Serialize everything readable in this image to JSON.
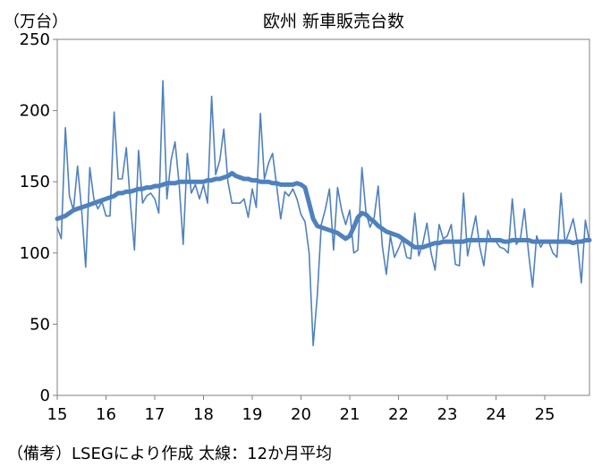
{
  "chart_data": {
    "type": "line",
    "title": "欧州 新車販売台数",
    "y_unit_label": "（万台）",
    "footnote": "（備考）LSEGにより作成 太線：12か月平均",
    "ylim": [
      0,
      250
    ],
    "y_ticks": [
      0,
      50,
      100,
      150,
      200,
      250
    ],
    "x_ticks": [
      "15",
      "16",
      "17",
      "18",
      "19",
      "20",
      "21",
      "22",
      "23",
      "24",
      "25"
    ],
    "xlim": [
      2015.0,
      2025.917
    ],
    "grid": false,
    "legend": "none",
    "series": [
      {
        "style": "thin",
        "color": "#4F81BD",
        "points": [
          [
            2015.0,
            118
          ],
          [
            2015.083,
            110
          ],
          [
            2015.167,
            188
          ],
          [
            2015.25,
            140
          ],
          [
            2015.333,
            130
          ],
          [
            2015.417,
            161
          ],
          [
            2015.5,
            130
          ],
          [
            2015.583,
            90
          ],
          [
            2015.667,
            160
          ],
          [
            2015.75,
            138
          ],
          [
            2015.833,
            131
          ],
          [
            2015.917,
            136
          ],
          [
            2016.0,
            126
          ],
          [
            2016.083,
            126
          ],
          [
            2016.167,
            199
          ],
          [
            2016.25,
            152
          ],
          [
            2016.333,
            152
          ],
          [
            2016.417,
            174
          ],
          [
            2016.5,
            135
          ],
          [
            2016.583,
            102
          ],
          [
            2016.667,
            172
          ],
          [
            2016.75,
            135
          ],
          [
            2016.833,
            140
          ],
          [
            2016.917,
            142
          ],
          [
            2017.0,
            138
          ],
          [
            2017.083,
            128
          ],
          [
            2017.167,
            221
          ],
          [
            2017.25,
            138
          ],
          [
            2017.333,
            165
          ],
          [
            2017.417,
            178
          ],
          [
            2017.5,
            148
          ],
          [
            2017.583,
            106
          ],
          [
            2017.667,
            170
          ],
          [
            2017.75,
            142
          ],
          [
            2017.833,
            148
          ],
          [
            2017.917,
            138
          ],
          [
            2018.0,
            148
          ],
          [
            2018.083,
            135
          ],
          [
            2018.167,
            210
          ],
          [
            2018.25,
            155
          ],
          [
            2018.333,
            165
          ],
          [
            2018.417,
            187
          ],
          [
            2018.5,
            150
          ],
          [
            2018.583,
            135
          ],
          [
            2018.667,
            135
          ],
          [
            2018.75,
            135
          ],
          [
            2018.833,
            138
          ],
          [
            2018.917,
            125
          ],
          [
            2019.0,
            145
          ],
          [
            2019.083,
            132
          ],
          [
            2019.167,
            198
          ],
          [
            2019.25,
            152
          ],
          [
            2019.333,
            163
          ],
          [
            2019.417,
            170
          ],
          [
            2019.5,
            147
          ],
          [
            2019.583,
            124
          ],
          [
            2019.667,
            143
          ],
          [
            2019.75,
            140
          ],
          [
            2019.833,
            145
          ],
          [
            2019.917,
            138
          ],
          [
            2020.0,
            127
          ],
          [
            2020.083,
            122
          ],
          [
            2020.167,
            100
          ],
          [
            2020.25,
            35
          ],
          [
            2020.333,
            70
          ],
          [
            2020.417,
            120
          ],
          [
            2020.5,
            131
          ],
          [
            2020.583,
            145
          ],
          [
            2020.667,
            102
          ],
          [
            2020.75,
            146
          ],
          [
            2020.833,
            130
          ],
          [
            2020.917,
            120
          ],
          [
            2021.0,
            130
          ],
          [
            2021.083,
            100
          ],
          [
            2021.167,
            102
          ],
          [
            2021.25,
            160
          ],
          [
            2021.333,
            128
          ],
          [
            2021.417,
            118
          ],
          [
            2021.5,
            125
          ],
          [
            2021.583,
            147
          ],
          [
            2021.667,
            105
          ],
          [
            2021.75,
            85
          ],
          [
            2021.833,
            112
          ],
          [
            2021.917,
            97
          ],
          [
            2022.0,
            103
          ],
          [
            2022.083,
            110
          ],
          [
            2022.167,
            97
          ],
          [
            2022.25,
            96
          ],
          [
            2022.333,
            128
          ],
          [
            2022.417,
            98
          ],
          [
            2022.5,
            107
          ],
          [
            2022.583,
            121
          ],
          [
            2022.667,
            100
          ],
          [
            2022.75,
            88
          ],
          [
            2022.833,
            120
          ],
          [
            2022.917,
            110
          ],
          [
            2023.0,
            112
          ],
          [
            2023.083,
            120
          ],
          [
            2023.167,
            92
          ],
          [
            2023.25,
            91
          ],
          [
            2023.333,
            142
          ],
          [
            2023.417,
            98
          ],
          [
            2023.5,
            112
          ],
          [
            2023.583,
            126
          ],
          [
            2023.667,
            104
          ],
          [
            2023.75,
            91
          ],
          [
            2023.833,
            116
          ],
          [
            2023.917,
            108
          ],
          [
            2024.0,
            108
          ],
          [
            2024.083,
            104
          ],
          [
            2024.167,
            103
          ],
          [
            2024.25,
            100
          ],
          [
            2024.333,
            138
          ],
          [
            2024.417,
            106
          ],
          [
            2024.5,
            110
          ],
          [
            2024.583,
            131
          ],
          [
            2024.667,
            100
          ],
          [
            2024.75,
            76
          ],
          [
            2024.833,
            112
          ],
          [
            2024.917,
            104
          ],
          [
            2025.0,
            109
          ],
          [
            2025.083,
            108
          ],
          [
            2025.167,
            100
          ],
          [
            2025.25,
            97
          ],
          [
            2025.333,
            142
          ],
          [
            2025.417,
            107
          ],
          [
            2025.5,
            115
          ],
          [
            2025.583,
            124
          ],
          [
            2025.667,
            108
          ],
          [
            2025.75,
            79
          ],
          [
            2025.833,
            123
          ],
          [
            2025.917,
            108
          ]
        ]
      },
      {
        "style": "thick",
        "color": "#4F81BD",
        "points": [
          [
            2015.0,
            124
          ],
          [
            2015.083,
            125
          ],
          [
            2015.167,
            126
          ],
          [
            2015.25,
            128
          ],
          [
            2015.333,
            130
          ],
          [
            2015.417,
            131
          ],
          [
            2015.5,
            132
          ],
          [
            2015.583,
            133
          ],
          [
            2015.667,
            134
          ],
          [
            2015.75,
            135
          ],
          [
            2015.833,
            136
          ],
          [
            2015.917,
            137
          ],
          [
            2016.0,
            138
          ],
          [
            2016.083,
            139
          ],
          [
            2016.167,
            140
          ],
          [
            2016.25,
            142
          ],
          [
            2016.333,
            142
          ],
          [
            2016.417,
            143
          ],
          [
            2016.5,
            143
          ],
          [
            2016.583,
            144
          ],
          [
            2016.667,
            145
          ],
          [
            2016.75,
            145
          ],
          [
            2016.833,
            146
          ],
          [
            2016.917,
            146
          ],
          [
            2017.0,
            147
          ],
          [
            2017.083,
            147
          ],
          [
            2017.167,
            148
          ],
          [
            2017.25,
            149
          ],
          [
            2017.333,
            149
          ],
          [
            2017.417,
            149
          ],
          [
            2017.5,
            150
          ],
          [
            2017.583,
            150
          ],
          [
            2017.667,
            150
          ],
          [
            2017.75,
            150
          ],
          [
            2017.833,
            150
          ],
          [
            2017.917,
            150
          ],
          [
            2018.0,
            150
          ],
          [
            2018.083,
            151
          ],
          [
            2018.167,
            151
          ],
          [
            2018.25,
            152
          ],
          [
            2018.333,
            152
          ],
          [
            2018.417,
            153
          ],
          [
            2018.5,
            154
          ],
          [
            2018.583,
            156
          ],
          [
            2018.667,
            154
          ],
          [
            2018.75,
            153
          ],
          [
            2018.833,
            152
          ],
          [
            2018.917,
            152
          ],
          [
            2019.0,
            151
          ],
          [
            2019.083,
            151
          ],
          [
            2019.167,
            150
          ],
          [
            2019.25,
            150
          ],
          [
            2019.333,
            150
          ],
          [
            2019.417,
            149
          ],
          [
            2019.5,
            149
          ],
          [
            2019.583,
            148
          ],
          [
            2019.667,
            148
          ],
          [
            2019.75,
            148
          ],
          [
            2019.833,
            148
          ],
          [
            2019.917,
            149
          ],
          [
            2020.0,
            148
          ],
          [
            2020.083,
            146
          ],
          [
            2020.167,
            135
          ],
          [
            2020.25,
            124
          ],
          [
            2020.333,
            119
          ],
          [
            2020.417,
            118
          ],
          [
            2020.5,
            117
          ],
          [
            2020.583,
            116
          ],
          [
            2020.667,
            115
          ],
          [
            2020.75,
            114
          ],
          [
            2020.833,
            112
          ],
          [
            2020.917,
            110
          ],
          [
            2021.0,
            112
          ],
          [
            2021.083,
            118
          ],
          [
            2021.167,
            125
          ],
          [
            2021.25,
            128
          ],
          [
            2021.333,
            127
          ],
          [
            2021.417,
            124
          ],
          [
            2021.5,
            122
          ],
          [
            2021.583,
            119
          ],
          [
            2021.667,
            117
          ],
          [
            2021.75,
            115
          ],
          [
            2021.833,
            114
          ],
          [
            2021.917,
            113
          ],
          [
            2022.0,
            112
          ],
          [
            2022.083,
            110
          ],
          [
            2022.167,
            108
          ],
          [
            2022.25,
            106
          ],
          [
            2022.333,
            104
          ],
          [
            2022.417,
            104
          ],
          [
            2022.5,
            104
          ],
          [
            2022.583,
            105
          ],
          [
            2022.667,
            106
          ],
          [
            2022.75,
            107
          ],
          [
            2022.833,
            107
          ],
          [
            2022.917,
            108
          ],
          [
            2023.0,
            108
          ],
          [
            2023.083,
            108
          ],
          [
            2023.167,
            108
          ],
          [
            2023.25,
            108
          ],
          [
            2023.333,
            108
          ],
          [
            2023.417,
            109
          ],
          [
            2023.5,
            109
          ],
          [
            2023.583,
            109
          ],
          [
            2023.667,
            109
          ],
          [
            2023.75,
            109
          ],
          [
            2023.833,
            109
          ],
          [
            2023.917,
            109
          ],
          [
            2024.0,
            109
          ],
          [
            2024.083,
            109
          ],
          [
            2024.167,
            108
          ],
          [
            2024.25,
            108
          ],
          [
            2024.333,
            109
          ],
          [
            2024.417,
            109
          ],
          [
            2024.5,
            109
          ],
          [
            2024.583,
            109
          ],
          [
            2024.667,
            109
          ],
          [
            2024.75,
            108
          ],
          [
            2024.833,
            108
          ],
          [
            2024.917,
            108
          ],
          [
            2025.0,
            108
          ],
          [
            2025.083,
            108
          ],
          [
            2025.167,
            108
          ],
          [
            2025.25,
            108
          ],
          [
            2025.333,
            108
          ],
          [
            2025.417,
            108
          ],
          [
            2025.5,
            108
          ],
          [
            2025.583,
            107
          ],
          [
            2025.667,
            108
          ],
          [
            2025.75,
            108
          ],
          [
            2025.833,
            109
          ],
          [
            2025.917,
            109
          ]
        ]
      }
    ]
  }
}
